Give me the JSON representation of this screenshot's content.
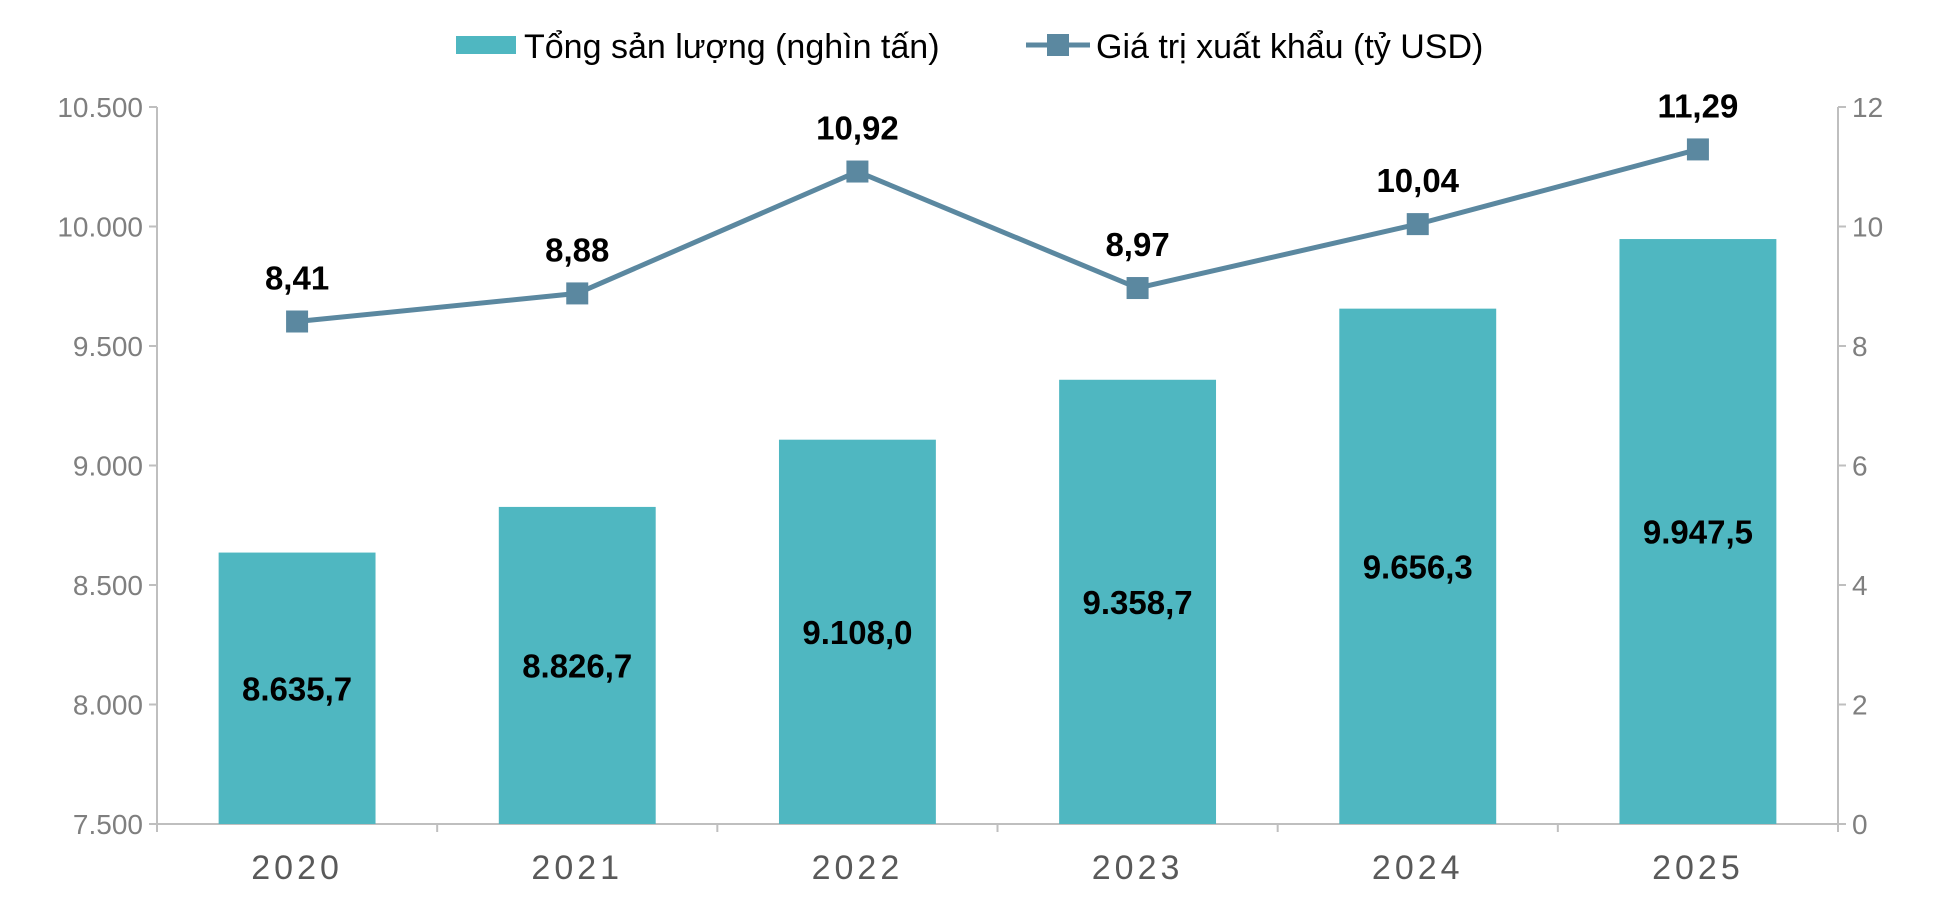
{
  "chart_data": {
    "type": "bar",
    "categories": [
      "2020",
      "2021",
      "2022",
      "2023",
      "2024",
      "2025"
    ],
    "series": [
      {
        "name": "Tổng sản lượng (nghìn tấn)",
        "type": "bar",
        "axis": "left",
        "color": "#4fb7c1",
        "values": [
          8635.7,
          8826.7,
          9108.0,
          9358.7,
          9656.3,
          9947.5
        ],
        "labels": [
          "8.635,7",
          "8.826,7",
          "9.108,0",
          "9.358,7",
          "9.656,3",
          "9.947,5"
        ]
      },
      {
        "name": "Giá trị xuất khẩu (tỷ USD)",
        "type": "line",
        "axis": "right",
        "color": "#5b88a0",
        "marker": "square",
        "values": [
          8.41,
          8.88,
          10.92,
          8.97,
          10.04,
          11.29
        ],
        "labels": [
          "8,41",
          "8,88",
          "10,92",
          "8,97",
          "10,04",
          "11,29"
        ]
      }
    ],
    "y_left": {
      "lim": [
        7500,
        10500
      ],
      "ticks": [
        7500,
        8000,
        8500,
        9000,
        9500,
        10000,
        10500
      ],
      "tick_labels": [
        "7.500",
        "8.000",
        "8.500",
        "9.000",
        "9.500",
        "10.000",
        "10.500"
      ]
    },
    "y_right": {
      "lim": [
        0,
        12
      ],
      "ticks": [
        0,
        2,
        4,
        6,
        8,
        10,
        12
      ],
      "tick_labels": [
        "0",
        "2",
        "4",
        "6",
        "8",
        "10",
        "12"
      ]
    },
    "legend_position": "top",
    "grid": false,
    "axis_color": "#bfbfbf"
  }
}
